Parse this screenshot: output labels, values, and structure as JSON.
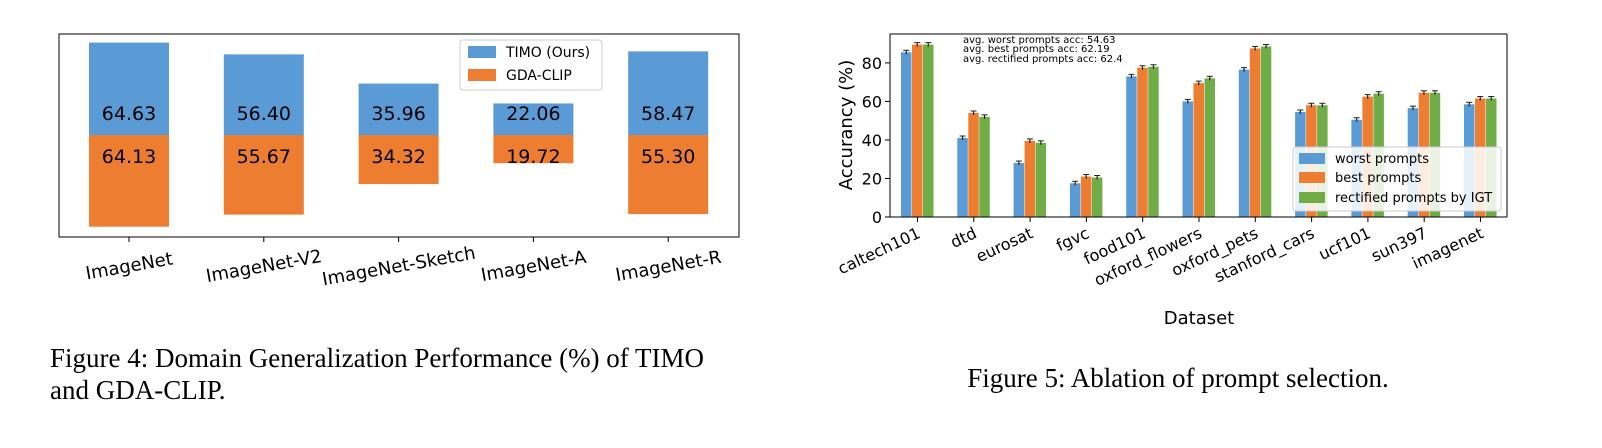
{
  "chart_data": [
    {
      "type": "bar",
      "categories": [
        "ImageNet",
        "ImageNet-V2",
        "ImageNet-Sketch",
        "ImageNet-A",
        "ImageNet-R"
      ],
      "series": [
        {
          "name": "TIMO (Ours)",
          "values": [
            64.63,
            56.4,
            35.96,
            22.06,
            58.47
          ],
          "labels": [
            "64.63",
            "56.40",
            "35.96",
            "22.06",
            "58.47"
          ],
          "color": "#5b9bd5"
        },
        {
          "name": "GDA-CLIP",
          "values": [
            64.13,
            55.67,
            34.32,
            19.72,
            55.3
          ],
          "labels": [
            "64.13",
            "55.67",
            "34.32",
            "19.72",
            "55.30"
          ],
          "color": "#ed7d31"
        }
      ],
      "stacking": "TIMO above baseline, GDA-CLIP below baseline",
      "grid": false,
      "legend_position": "top-right",
      "caption": "Figure 4: Domain Generalization Performance (%) of TIMO and GDA-CLIP.",
      "caption_lines": [
        "Figure 4: Domain Generalization Performance (%) of TIMO",
        "and GDA-CLIP."
      ]
    },
    {
      "type": "bar",
      "categories": [
        "caltech101",
        "dtd",
        "eurosat",
        "fgvc",
        "food101",
        "oxford_flowers",
        "oxford_pets",
        "stanford_cars",
        "ucf101",
        "sun397",
        "imagenet"
      ],
      "series": [
        {
          "name": "worst prompts",
          "values": [
            85.5,
            41.0,
            28.0,
            17.5,
            73.0,
            60.0,
            76.5,
            54.5,
            50.5,
            56.5,
            58.5
          ],
          "color": "#5b9bd5"
        },
        {
          "name": "best prompts",
          "values": [
            89.5,
            54.0,
            39.5,
            21.0,
            77.5,
            69.5,
            87.5,
            58.0,
            62.5,
            64.5,
            61.5
          ],
          "color": "#ed7d31"
        },
        {
          "name": "rectified prompts by IGT",
          "values": [
            89.5,
            52.0,
            38.5,
            20.5,
            78.0,
            72.0,
            88.5,
            58.0,
            64.0,
            64.5,
            61.5
          ],
          "color": "#70ad47"
        }
      ],
      "error_bars": true,
      "xlabel": "Dataset",
      "ylabel": "Accurancy (%)",
      "ylim": [
        0,
        95
      ],
      "yticks": [
        "0",
        "20",
        "40",
        "60",
        "80"
      ],
      "annotations": [
        "avg. worst prompts acc: 54.63",
        "avg. best prompts acc: 62.19",
        "avg. rectified prompts acc: 62.4"
      ],
      "grid": false,
      "legend_position": "lower-right",
      "caption": "Figure 5: Ablation of prompt selection."
    }
  ]
}
